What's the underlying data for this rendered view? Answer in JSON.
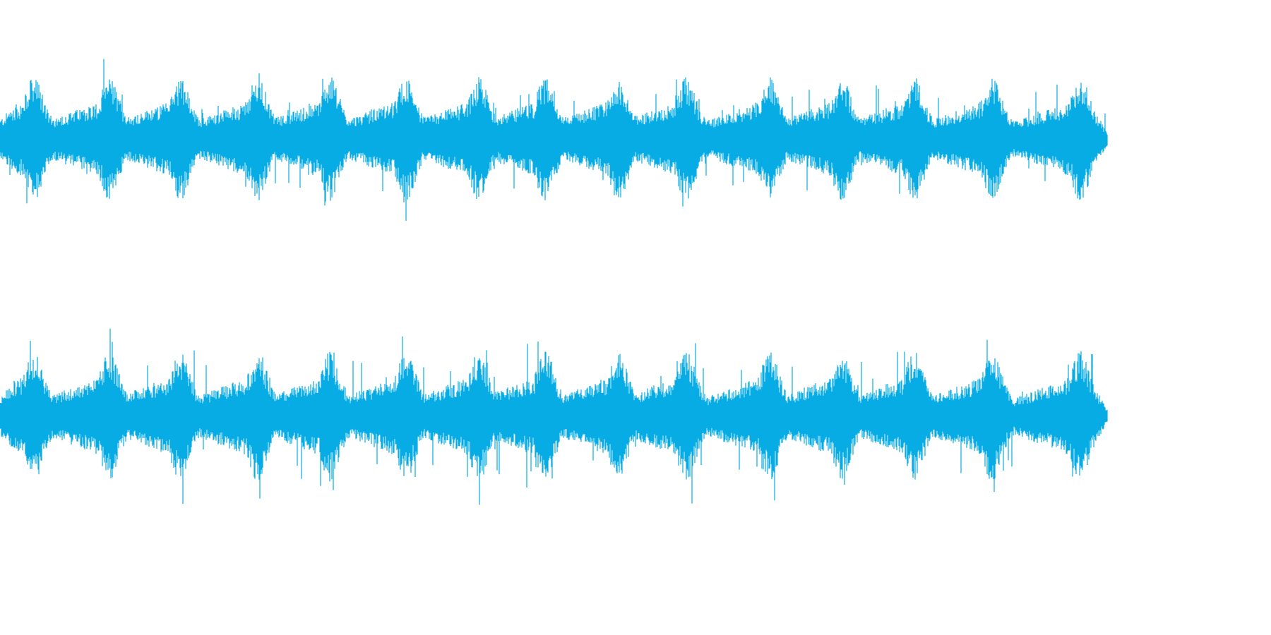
{
  "waveform": {
    "channels": 2,
    "color": "#06ACE3",
    "background": "#ffffff",
    "pulse_count": 14
  }
}
